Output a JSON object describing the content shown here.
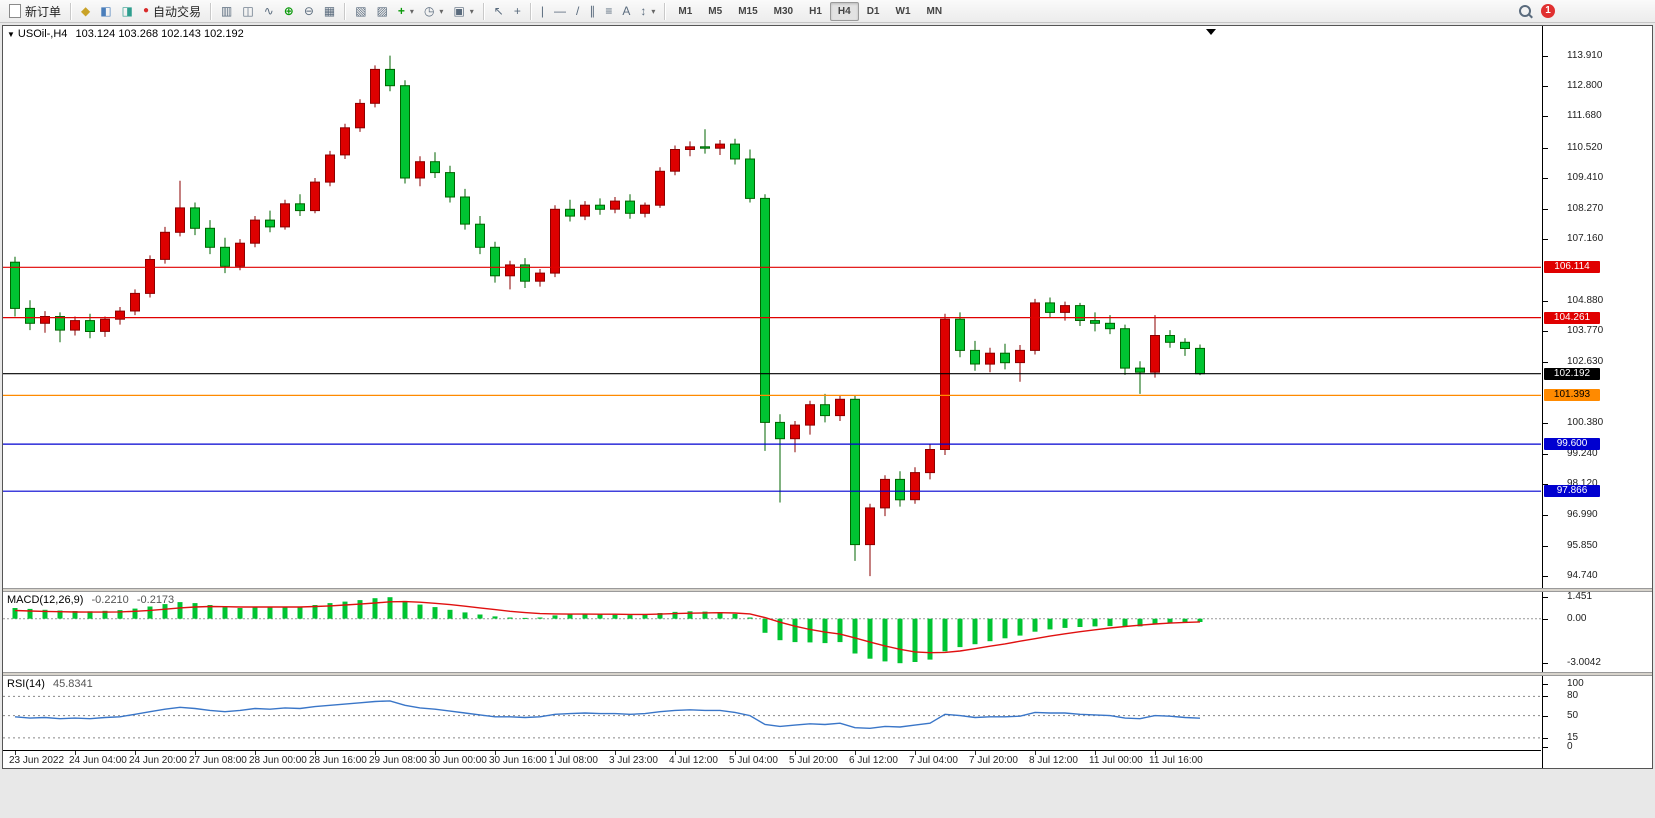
{
  "toolbar": {
    "new_order": "新订单",
    "autotrading": "自动交易",
    "timeframes": [
      "M1",
      "M5",
      "M15",
      "M30",
      "H1",
      "H4",
      "D1",
      "W1",
      "MN"
    ],
    "active_timeframe": "H4",
    "notification_badge": "1"
  },
  "icons": {
    "symbol_marker": "▼",
    "market_watch": "◆",
    "navigator": "◧",
    "terminal": "◨",
    "autotrading_dot": "●",
    "chart_bars": "▥",
    "chart_candles": "◫",
    "chart_line": "∿",
    "zoom_in": "⊕",
    "zoom_out": "⊖",
    "tile_windows": "▦",
    "arrange_windows": "▧",
    "cascade_windows": "▨",
    "add_indicator": "+",
    "periods": "◷",
    "templates": "▣",
    "cursor": "↖",
    "crosshair": "+",
    "vline": "|",
    "hline": "—",
    "trendline": "/",
    "channel": "∥",
    "fibonacci": "≡",
    "text_tool": "A",
    "arrow_tool": "↕",
    "dropdown": "▾"
  },
  "chart": {
    "symbol": "USOil-,H4",
    "ohlc": "103.124 103.268 102.143 102.192"
  },
  "chart_data": [
    {
      "type": "candlestick",
      "title": "USOil-,H4",
      "ohlc_readout": {
        "open": 103.124,
        "high": 103.268,
        "low": 102.143,
        "close": 102.192
      },
      "up_color": "#dd0000",
      "up_stroke": "#8b0000",
      "down_color": "#00c432",
      "down_stroke": "#006400",
      "price_range": [
        94.3,
        115.0
      ],
      "y_ticks": [
        "113.910",
        "112.800",
        "111.680",
        "110.520",
        "109.410",
        "108.270",
        "107.160",
        "104.880",
        "103.770",
        "102.630",
        "100.380",
        "99.240",
        "98.120",
        "96.990",
        "95.850",
        "94.740"
      ],
      "lines": [
        {
          "value": 106.114,
          "label": "106.114",
          "color": "#e00000",
          "tag_bg": "#e00000",
          "tag_fg": "#ffffff"
        },
        {
          "value": 104.261,
          "label": "104.261",
          "color": "#e00000",
          "tag_bg": "#e00000",
          "tag_fg": "#ffffff"
        },
        {
          "value": 102.192,
          "label": "102.192",
          "color": "#000000",
          "tag_bg": "#000000",
          "tag_fg": "#ffffff"
        },
        {
          "value": 101.393,
          "label": "101.393",
          "color": "#ff8a00",
          "tag_bg": "#ff8a00",
          "tag_fg": "#000000"
        },
        {
          "value": 99.6,
          "label": "99.600",
          "color": "#0000d0",
          "tag_bg": "#0000d0",
          "tag_fg": "#ffffff"
        },
        {
          "value": 97.866,
          "label": "97.866",
          "color": "#0000d0",
          "tag_bg": "#0000d0",
          "tag_fg": "#ffffff"
        }
      ],
      "x_labels": [
        {
          "index": 1,
          "label": "23 Jun 2022"
        },
        {
          "index": 5,
          "label": "24 Jun 04:00"
        },
        {
          "index": 9,
          "label": "24 Jun 20:00"
        },
        {
          "index": 13,
          "label": "27 Jun 08:00"
        },
        {
          "index": 17,
          "label": "28 Jun 00:00"
        },
        {
          "index": 21,
          "label": "28 Jun 16:00"
        },
        {
          "index": 25,
          "label": "29 Jun 08:00"
        },
        {
          "index": 29,
          "label": "30 Jun 00:00"
        },
        {
          "index": 33,
          "label": "30 Jun 16:00"
        },
        {
          "index": 37,
          "label": "1 Jul 08:00"
        },
        {
          "index": 41,
          "label": "3 Jul 23:00"
        },
        {
          "index": 45,
          "label": "4 Jul 12:00"
        },
        {
          "index": 49,
          "label": "5 Jul 04:00"
        },
        {
          "index": 53,
          "label": "5 Jul 20:00"
        },
        {
          "index": 57,
          "label": "6 Jul 12:00"
        },
        {
          "index": 61,
          "label": "7 Jul 04:00"
        },
        {
          "index": 65,
          "label": "7 Jul 20:00"
        },
        {
          "index": 69,
          "label": "8 Jul 12:00"
        },
        {
          "index": 73,
          "label": "11 Jul 00:00"
        },
        {
          "index": 77,
          "label": "11 Jul 16:00"
        }
      ],
      "candles": [
        [
          106.3,
          106.5,
          104.3,
          104.6
        ],
        [
          104.6,
          104.9,
          103.8,
          104.05
        ],
        [
          104.05,
          104.5,
          103.7,
          104.3
        ],
        [
          104.3,
          104.45,
          103.35,
          103.8
        ],
        [
          103.8,
          104.3,
          103.6,
          104.15
        ],
        [
          104.15,
          104.4,
          103.5,
          103.75
        ],
        [
          103.75,
          104.3,
          103.55,
          104.2
        ],
        [
          104.2,
          104.65,
          104.0,
          104.5
        ],
        [
          104.5,
          105.3,
          104.35,
          105.15
        ],
        [
          105.15,
          106.55,
          105.0,
          106.4
        ],
        [
          106.4,
          107.6,
          106.25,
          107.4
        ],
        [
          107.4,
          109.3,
          107.25,
          108.3
        ],
        [
          108.3,
          108.5,
          107.3,
          107.55
        ],
        [
          107.55,
          107.85,
          106.6,
          106.85
        ],
        [
          106.85,
          107.2,
          105.9,
          106.15
        ],
        [
          106.15,
          107.15,
          106.0,
          107.0
        ],
        [
          107.0,
          108.0,
          106.85,
          107.85
        ],
        [
          107.85,
          108.2,
          107.4,
          107.6
        ],
        [
          107.6,
          108.6,
          107.5,
          108.45
        ],
        [
          108.45,
          108.8,
          108.0,
          108.2
        ],
        [
          108.2,
          109.4,
          108.1,
          109.25
        ],
        [
          109.25,
          110.4,
          109.1,
          110.25
        ],
        [
          110.25,
          111.4,
          110.1,
          111.25
        ],
        [
          111.25,
          112.3,
          111.1,
          112.15
        ],
        [
          112.15,
          113.55,
          112.0,
          113.4
        ],
        [
          113.4,
          113.91,
          112.6,
          112.8
        ],
        [
          112.8,
          113.0,
          109.2,
          109.4
        ],
        [
          109.4,
          110.2,
          109.1,
          110.0
        ],
        [
          110.0,
          110.35,
          109.4,
          109.6
        ],
        [
          109.6,
          109.85,
          108.5,
          108.7
        ],
        [
          108.7,
          109.0,
          107.5,
          107.7
        ],
        [
          107.7,
          108.0,
          106.6,
          106.85
        ],
        [
          106.85,
          107.05,
          105.55,
          105.8
        ],
        [
          105.8,
          106.35,
          105.3,
          106.2
        ],
        [
          106.2,
          106.45,
          105.35,
          105.6
        ],
        [
          105.6,
          106.05,
          105.4,
          105.9
        ],
        [
          105.9,
          108.4,
          105.75,
          108.25
        ],
        [
          108.25,
          108.6,
          107.8,
          108.0
        ],
        [
          108.0,
          108.55,
          107.85,
          108.4
        ],
        [
          108.4,
          108.65,
          108.05,
          108.25
        ],
        [
          108.25,
          108.7,
          108.1,
          108.55
        ],
        [
          108.55,
          108.8,
          107.9,
          108.1
        ],
        [
          108.1,
          108.5,
          107.95,
          108.4
        ],
        [
          108.4,
          109.8,
          108.3,
          109.65
        ],
        [
          109.65,
          110.6,
          109.5,
          110.45
        ],
        [
          110.45,
          110.75,
          110.2,
          110.55
        ],
        [
          110.55,
          111.2,
          110.3,
          110.5
        ],
        [
          110.5,
          110.8,
          110.25,
          110.65
        ],
        [
          110.65,
          110.85,
          109.9,
          110.1
        ],
        [
          110.1,
          110.45,
          108.5,
          108.65
        ],
        [
          108.65,
          108.8,
          99.35,
          100.4
        ],
        [
          100.4,
          100.7,
          97.45,
          99.8
        ],
        [
          99.8,
          100.45,
          99.3,
          100.3
        ],
        [
          100.3,
          101.2,
          99.95,
          101.05
        ],
        [
          101.05,
          101.45,
          100.4,
          100.65
        ],
        [
          100.65,
          101.4,
          100.45,
          101.25
        ],
        [
          101.25,
          101.4,
          95.3,
          95.9
        ],
        [
          95.9,
          97.4,
          94.74,
          97.25
        ],
        [
          97.25,
          98.45,
          96.95,
          98.3
        ],
        [
          98.3,
          98.6,
          97.3,
          97.55
        ],
        [
          97.55,
          98.75,
          97.4,
          98.55
        ],
        [
          98.55,
          99.6,
          98.3,
          99.4
        ],
        [
          99.4,
          104.4,
          99.2,
          104.2
        ],
        [
          104.2,
          104.45,
          102.8,
          103.05
        ],
        [
          103.05,
          103.4,
          102.3,
          102.55
        ],
        [
          102.55,
          103.15,
          102.25,
          102.95
        ],
        [
          102.95,
          103.3,
          102.35,
          102.6
        ],
        [
          102.6,
          103.25,
          101.9,
          103.05
        ],
        [
          103.05,
          104.95,
          102.9,
          104.8
        ],
        [
          104.8,
          105.0,
          104.25,
          104.45
        ],
        [
          104.45,
          104.85,
          104.15,
          104.7
        ],
        [
          104.7,
          104.8,
          103.95,
          104.15
        ],
        [
          104.15,
          104.45,
          103.75,
          104.05
        ],
        [
          104.05,
          104.35,
          103.65,
          103.85
        ],
        [
          103.85,
          104.0,
          102.15,
          102.4
        ],
        [
          102.4,
          102.65,
          101.45,
          102.25
        ],
        [
          102.25,
          104.35,
          102.05,
          103.6
        ],
        [
          103.6,
          103.8,
          103.15,
          103.35
        ],
        [
          103.35,
          103.5,
          102.85,
          103.12
        ],
        [
          103.124,
          103.268,
          102.143,
          102.192
        ]
      ]
    },
    {
      "type": "macd",
      "name": "MACD(12,26,9)",
      "value_main": "-0.2210",
      "value_signal": "-0.2173",
      "range": [
        -3.6,
        1.8
      ],
      "y_ticks": [
        "1.451",
        "0.00",
        "-3.0042"
      ],
      "hist_color": "#00c432",
      "signal_color": "#e01010",
      "histogram": [
        0.72,
        0.66,
        0.6,
        0.55,
        0.52,
        0.5,
        0.53,
        0.58,
        0.68,
        0.82,
        0.98,
        1.12,
        1.05,
        0.92,
        0.78,
        0.72,
        0.78,
        0.76,
        0.82,
        0.8,
        0.92,
        1.05,
        1.15,
        1.25,
        1.38,
        1.451,
        1.2,
        0.95,
        0.78,
        0.6,
        0.42,
        0.28,
        0.15,
        0.08,
        0.05,
        0.08,
        0.22,
        0.28,
        0.3,
        0.28,
        0.27,
        0.24,
        0.28,
        0.38,
        0.46,
        0.5,
        0.48,
        0.44,
        0.32,
        0.08,
        -0.95,
        -1.45,
        -1.58,
        -1.6,
        -1.65,
        -1.58,
        -2.35,
        -2.7,
        -2.88,
        -3.0042,
        -2.92,
        -2.76,
        -2.2,
        -1.92,
        -1.72,
        -1.52,
        -1.32,
        -1.14,
        -0.88,
        -0.72,
        -0.62,
        -0.56,
        -0.52,
        -0.5,
        -0.56,
        -0.52,
        -0.38,
        -0.3,
        -0.25,
        -0.221
      ],
      "signal": [
        0.55,
        0.52,
        0.49,
        0.47,
        0.45,
        0.44,
        0.44,
        0.46,
        0.5,
        0.56,
        0.64,
        0.73,
        0.79,
        0.82,
        0.81,
        0.79,
        0.79,
        0.79,
        0.79,
        0.79,
        0.82,
        0.86,
        0.92,
        0.98,
        1.06,
        1.14,
        1.15,
        1.11,
        1.04,
        0.95,
        0.84,
        0.73,
        0.61,
        0.5,
        0.41,
        0.34,
        0.32,
        0.31,
        0.31,
        0.3,
        0.3,
        0.29,
        0.29,
        0.31,
        0.34,
        0.37,
        0.39,
        0.4,
        0.38,
        0.32,
        0.07,
        -0.24,
        -0.51,
        -0.73,
        -0.91,
        -1.04,
        -1.3,
        -1.58,
        -1.84,
        -2.07,
        -2.24,
        -2.3,
        -2.28,
        -2.18,
        -2.03,
        -1.86,
        -1.7,
        -1.52,
        -1.35,
        -1.18,
        -1.02,
        -0.88,
        -0.75,
        -0.63,
        -0.53,
        -0.44,
        -0.36,
        -0.3,
        -0.25,
        -0.217
      ]
    },
    {
      "type": "rsi",
      "name": "RSI(14)",
      "value": "45.8341",
      "range": [
        -4,
        112
      ],
      "levels": [
        80,
        50,
        15
      ],
      "y_ticks": [
        "100",
        "80",
        "50",
        "15",
        "0"
      ],
      "line_color": "#3a76c8",
      "values": [
        48,
        46,
        47,
        45,
        46,
        45,
        47,
        48,
        52,
        56,
        60,
        63,
        61,
        58,
        56,
        58,
        61,
        60,
        62,
        61,
        64,
        66,
        68,
        70,
        72,
        73,
        66,
        62,
        60,
        57,
        54,
        51,
        48,
        48,
        47,
        48,
        52,
        53,
        54,
        53,
        53,
        52,
        53,
        56,
        58,
        59,
        58,
        58,
        55,
        50,
        36,
        33,
        35,
        37,
        36,
        38,
        31,
        30,
        33,
        32,
        35,
        38,
        52,
        50,
        47,
        48,
        48,
        49,
        55,
        54,
        54,
        52,
        51,
        50,
        46,
        45,
        50,
        49,
        47,
        45.8341
      ]
    }
  ]
}
